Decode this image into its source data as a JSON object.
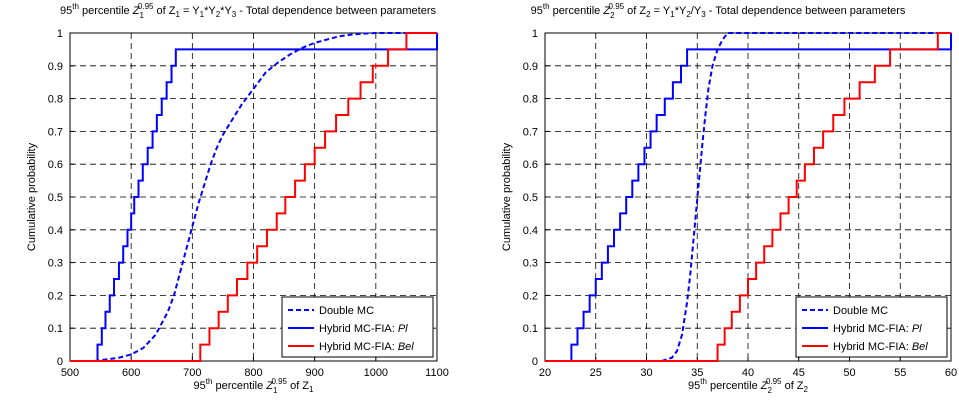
{
  "chart_data": [
    {
      "type": "line",
      "title": {
        "pre": "95",
        "sup": "th",
        "mid": " percentile ",
        "var": "Z",
        "vsub": "1",
        "vsup": "0.95",
        "tail": " of Z",
        "tailsub": "1",
        "eq": " = Y",
        "terms": [
          "1",
          "*Y",
          "2",
          "*Y",
          "3"
        ],
        "end": "  -  Total dependence between parameters"
      },
      "title_text": "95th percentile Z1^0.95 of Z1 = Y1*Y2*Y3  -  Total dependence between parameters",
      "xlabel": {
        "pre": "95",
        "sup": "th",
        "mid": " percentile ",
        "var": "Z",
        "vsub": "1",
        "vsup": "0.95",
        "tail": " of Z",
        "tailsub": "1"
      },
      "xlabel_text": "95th percentile Z1^0.95 of Z1",
      "ylabel": "Cumulative probability",
      "xlim": [
        500,
        1100
      ],
      "ylim": [
        0,
        1
      ],
      "xticks": [
        500,
        600,
        700,
        800,
        900,
        1000,
        1100
      ],
      "yticks": [
        0,
        0.1,
        0.2,
        0.3,
        0.4,
        0.5,
        0.6,
        0.7,
        0.8,
        0.9,
        1
      ],
      "grid": true,
      "legend_position": "bottom-right",
      "series": [
        {
          "name": "Double MC",
          "style": "dashed",
          "color": "#0000ff",
          "x": [
            540,
            560,
            580,
            600,
            620,
            640,
            660,
            670,
            680,
            690,
            700,
            710,
            720,
            730,
            740,
            750,
            760,
            770,
            780,
            800,
            820,
            840,
            860,
            880,
            900,
            920,
            940,
            960,
            980,
            1000,
            1040,
            1100
          ],
          "y": [
            0,
            0.005,
            0.01,
            0.02,
            0.04,
            0.08,
            0.15,
            0.2,
            0.27,
            0.34,
            0.41,
            0.48,
            0.54,
            0.6,
            0.65,
            0.69,
            0.72,
            0.75,
            0.78,
            0.83,
            0.88,
            0.91,
            0.935,
            0.955,
            0.97,
            0.98,
            0.99,
            0.995,
            0.998,
            1,
            1,
            1
          ]
        },
        {
          "name_main": "Hybrid MC-FIA: ",
          "name_em": "Pl",
          "name": "Hybrid MC-FIA: Pl",
          "style": "step",
          "color": "#0000ff",
          "x": [
            500,
            538,
            545,
            552,
            558,
            565,
            572,
            580,
            587,
            594,
            600,
            605,
            612,
            619,
            627,
            635,
            642,
            650,
            658,
            666,
            673,
            1100
          ],
          "y": [
            0,
            0,
            0.05,
            0.1,
            0.15,
            0.2,
            0.25,
            0.3,
            0.35,
            0.4,
            0.45,
            0.5,
            0.55,
            0.6,
            0.65,
            0.7,
            0.75,
            0.8,
            0.85,
            0.9,
            0.95,
            1
          ]
        },
        {
          "name_main": "Hybrid MC-FIA: ",
          "name_em": "Bel",
          "name": "Hybrid MC-FIA: Bel",
          "style": "step",
          "color": "#ff0000",
          "x": [
            500,
            698,
            713,
            728,
            743,
            758,
            773,
            790,
            806,
            822,
            838,
            852,
            868,
            884,
            900,
            917,
            935,
            955,
            975,
            995,
            1020,
            1050,
            1100
          ],
          "y": [
            0,
            0,
            0.05,
            0.1,
            0.15,
            0.2,
            0.25,
            0.3,
            0.35,
            0.4,
            0.45,
            0.5,
            0.55,
            0.6,
            0.65,
            0.7,
            0.75,
            0.8,
            0.85,
            0.9,
            0.95,
            1,
            1
          ]
        }
      ]
    },
    {
      "type": "line",
      "title": {
        "pre": "95",
        "sup": "th",
        "mid": " percentile ",
        "var": "Z",
        "vsub": "2",
        "vsup": "0.95",
        "tail": " of Z",
        "tailsub": "2",
        "eq": " = Y",
        "terms": [
          "1",
          "*Y",
          "2",
          "/Y",
          "3"
        ],
        "end": "  -  Total dependence between parameters"
      },
      "title_text": "95th percentile Z2^0.95 of Z2 = Y1*Y2/Y3  -  Total dependence between parameters",
      "xlabel": {
        "pre": "95",
        "sup": "th",
        "mid": " percentile ",
        "var": "Z",
        "vsub": "2",
        "vsup": "0.95",
        "tail": " of Z",
        "tailsub": "2"
      },
      "xlabel_text": "95th percentile Z2^0.95 of Z2",
      "ylabel": "Cumulative probability",
      "xlim": [
        20,
        60
      ],
      "ylim": [
        0,
        1
      ],
      "xticks": [
        20,
        25,
        30,
        35,
        40,
        45,
        50,
        55,
        60
      ],
      "yticks": [
        0,
        0.1,
        0.2,
        0.3,
        0.4,
        0.5,
        0.6,
        0.7,
        0.8,
        0.9,
        1
      ],
      "grid": true,
      "legend_position": "bottom-right",
      "series": [
        {
          "name": "Double MC",
          "style": "dashed",
          "color": "#0000ff",
          "x": [
            31.5,
            32,
            32.5,
            33,
            33.5,
            34,
            34.3,
            34.6,
            34.9,
            35.2,
            35.5,
            35.8,
            36.1,
            36.5,
            37,
            37.5,
            38,
            60
          ],
          "y": [
            0,
            0.005,
            0.01,
            0.03,
            0.08,
            0.18,
            0.26,
            0.36,
            0.46,
            0.56,
            0.66,
            0.75,
            0.83,
            0.9,
            0.95,
            0.98,
            1,
            1
          ]
        },
        {
          "name_main": "Hybrid MC-FIA: ",
          "name_em": "Pl",
          "name": "Hybrid MC-FIA: Pl",
          "style": "step",
          "color": "#0000ff",
          "x": [
            20,
            22,
            22.6,
            23.2,
            23.8,
            24.4,
            25,
            25.6,
            26.2,
            26.8,
            27.4,
            28,
            28.6,
            29.2,
            29.8,
            30.4,
            31,
            31.8,
            32.6,
            33.4,
            34,
            60
          ],
          "y": [
            0,
            0,
            0.05,
            0.1,
            0.15,
            0.2,
            0.25,
            0.3,
            0.35,
            0.4,
            0.45,
            0.5,
            0.55,
            0.6,
            0.65,
            0.7,
            0.75,
            0.8,
            0.85,
            0.9,
            0.95,
            1
          ]
        },
        {
          "name_main": "Hybrid MC-FIA: ",
          "name_em": "Bel",
          "name": "Hybrid MC-FIA: Bel",
          "style": "step",
          "color": "#ff0000",
          "x": [
            20,
            36.3,
            37,
            37.7,
            38.4,
            39.2,
            40,
            40.8,
            41.6,
            42.4,
            43.2,
            44,
            44.8,
            45.6,
            46.5,
            47.4,
            48.4,
            49.5,
            51,
            52.5,
            54,
            55.5,
            57,
            58.7,
            60
          ],
          "y": [
            0,
            0,
            0.05,
            0.1,
            0.15,
            0.2,
            0.25,
            0.3,
            0.35,
            0.4,
            0.45,
            0.5,
            0.55,
            0.6,
            0.65,
            0.7,
            0.75,
            0.8,
            0.85,
            0.9,
            0.95,
            0.95,
            0.95,
            1,
            1
          ]
        }
      ]
    }
  ]
}
